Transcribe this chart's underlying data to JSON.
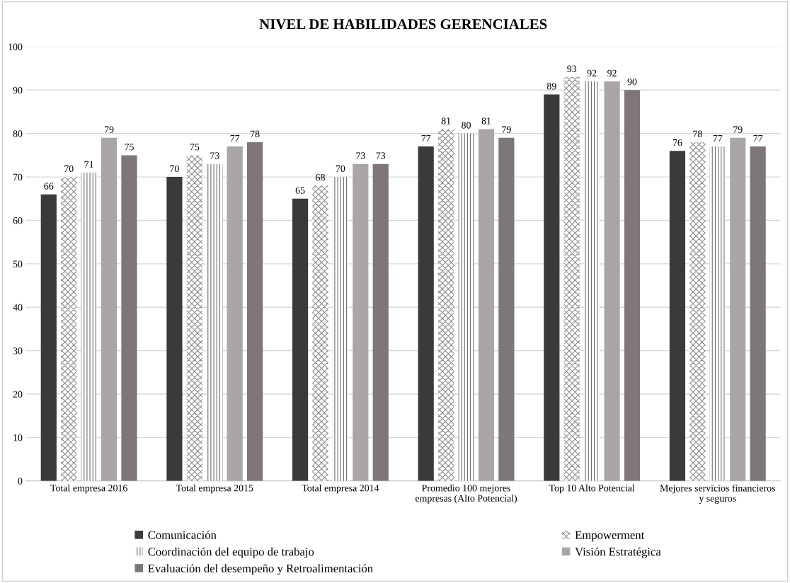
{
  "chart_data": {
    "type": "bar",
    "title": "NIVEL DE HABILIDADES GERENCIALES",
    "categories": [
      "Total empresa 2016",
      "Total empresa 2015",
      "Total empresa 2014",
      "Promedio 100 mejores\nempresas (Alto Potencial)",
      "Top 10 Alto Potencial",
      "Mejores servicios financieros\ny seguros"
    ],
    "series": [
      {
        "name": "Comunicación",
        "color": "#3a3a3a",
        "values": [
          66,
          70,
          65,
          77,
          89,
          76
        ]
      },
      {
        "name": "Empowerment",
        "color": "#8a8a8a",
        "values": [
          70,
          75,
          68,
          81,
          93,
          78
        ]
      },
      {
        "name": "Coordinación del equipo de trabajo",
        "color": "#6e6e6e",
        "values": [
          71,
          73,
          70,
          80,
          92,
          77
        ]
      },
      {
        "name": "Visión Estratégica",
        "color": "#aaa6a6",
        "values": [
          79,
          77,
          73,
          81,
          92,
          79
        ]
      },
      {
        "name": "Evaluación del desempeño y Retroalimentación",
        "color": "#7f7777",
        "values": [
          75,
          78,
          73,
          79,
          90,
          77
        ]
      }
    ],
    "ylim": [
      0,
      100
    ],
    "yticks": [
      0,
      10,
      20,
      30,
      40,
      50,
      60,
      70,
      80,
      90,
      100
    ],
    "grid": "y",
    "legend": "bottom",
    "data_labels": true
  }
}
